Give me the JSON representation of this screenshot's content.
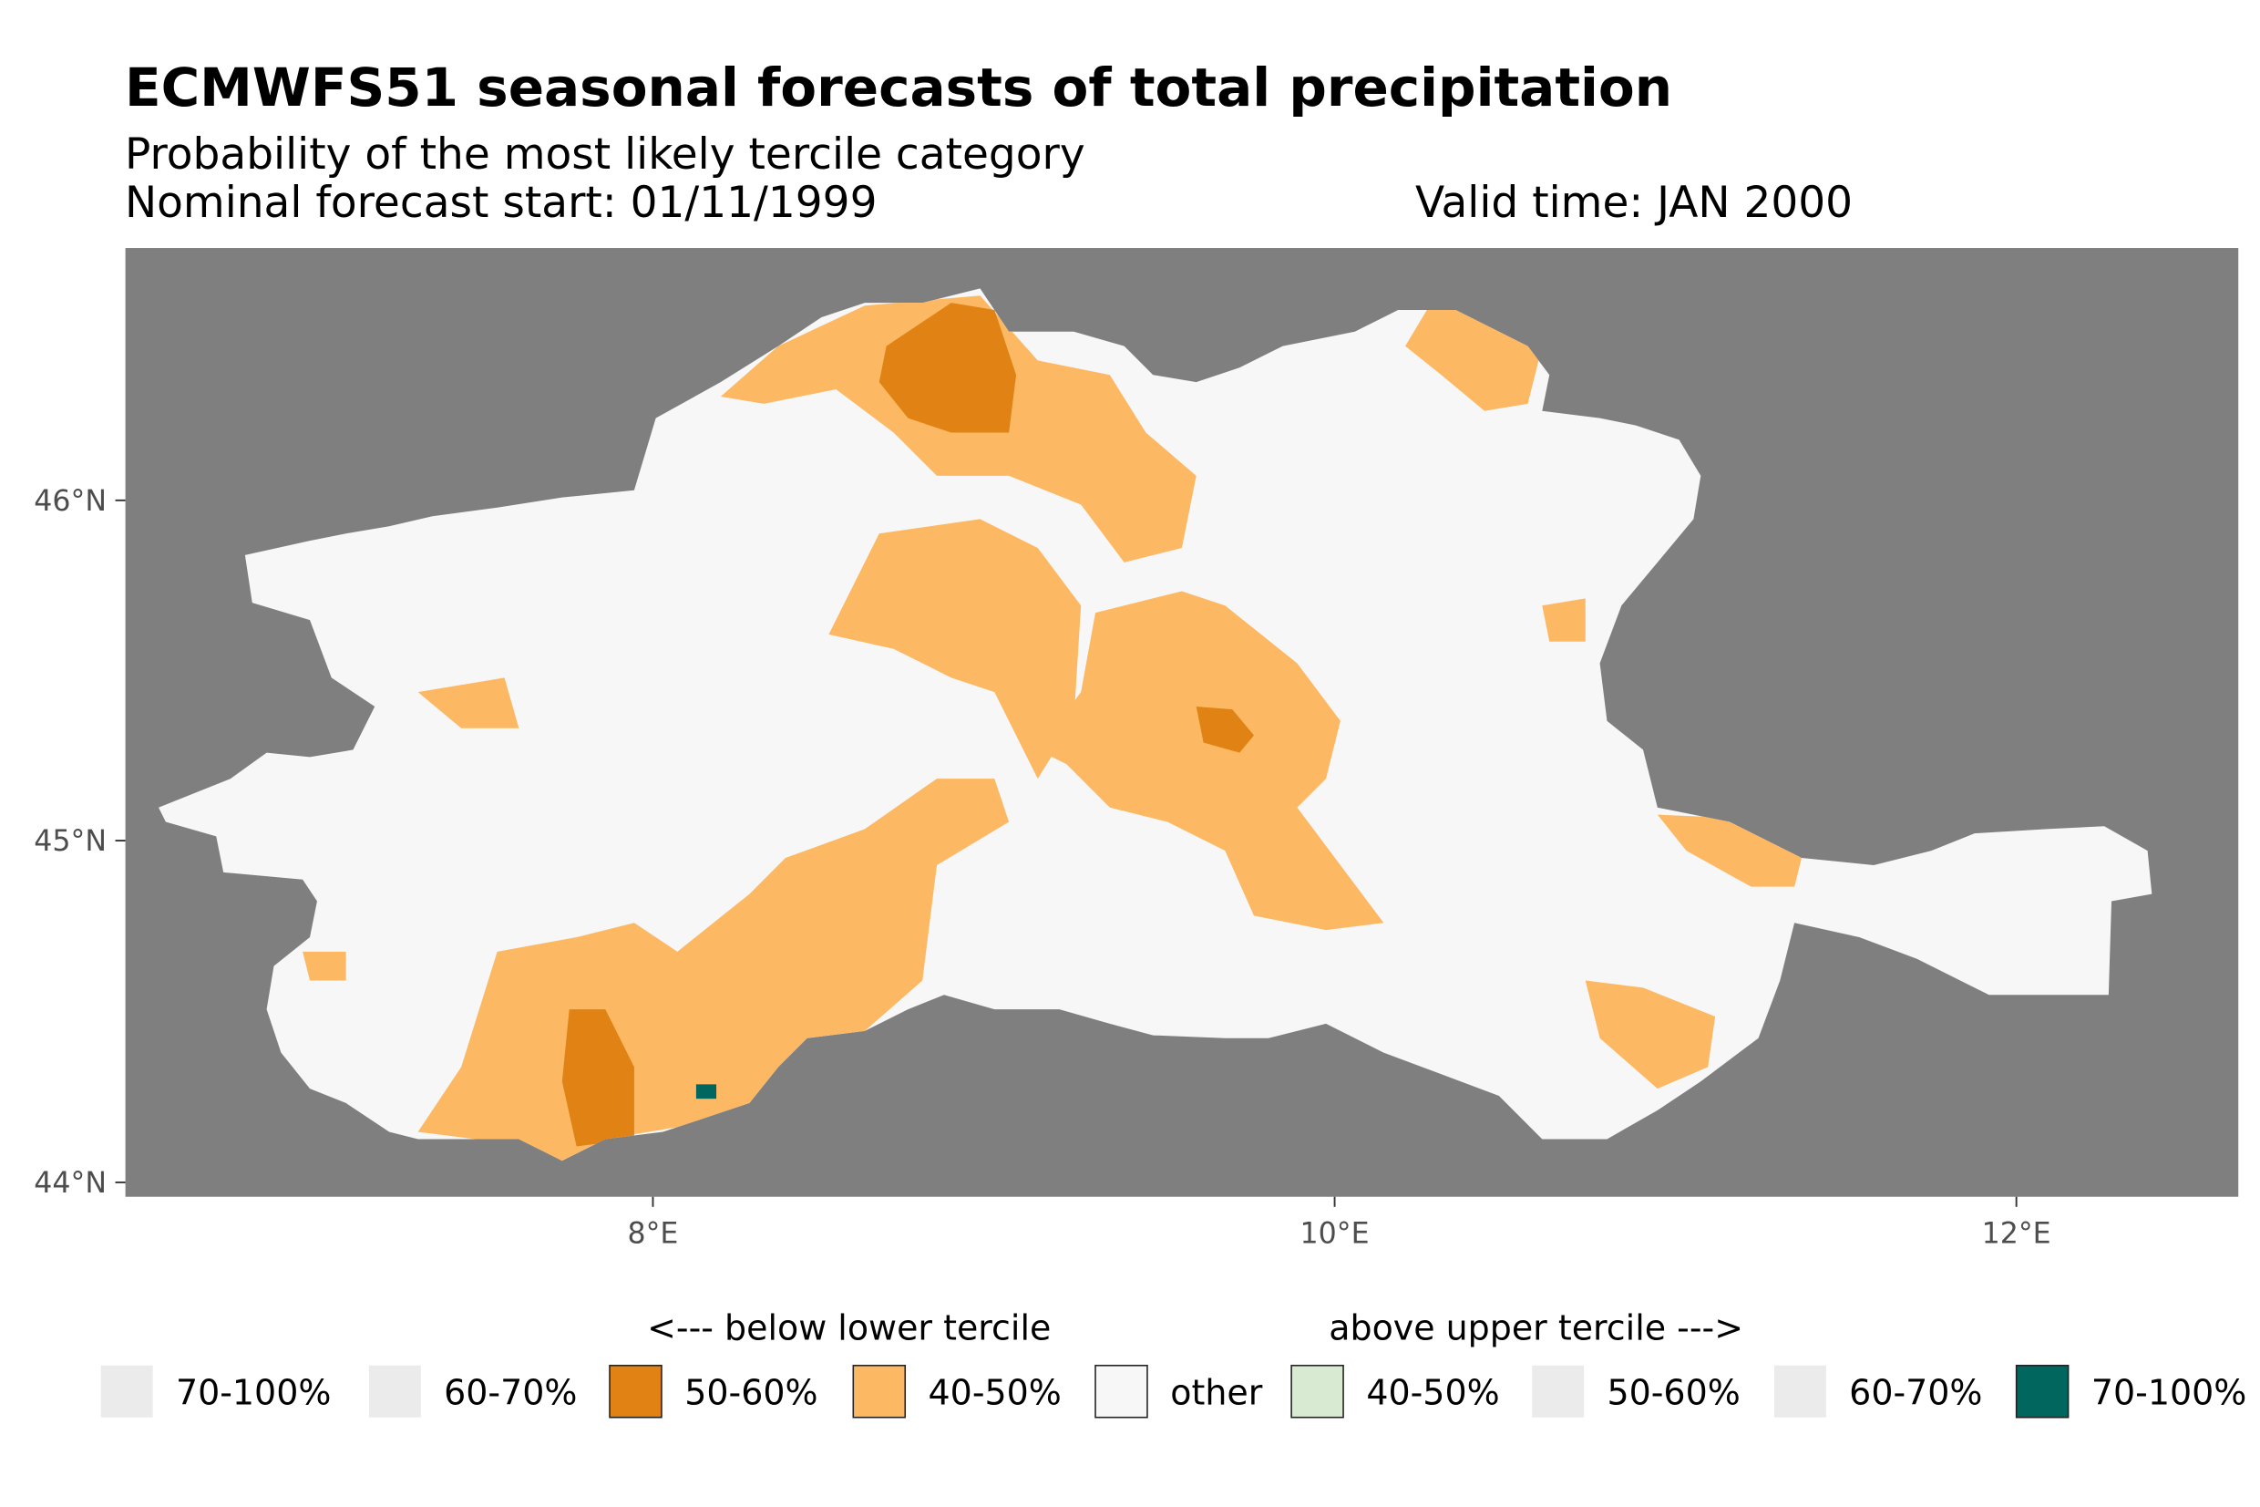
{
  "header": {
    "title": "ECMWFS51 seasonal forecasts of total precipitation",
    "subtitle": "Probability of the most likely tercile category",
    "forecast_start": "Nominal forecast start: 01/11/1999",
    "valid_time": "Valid time: JAN 2000"
  },
  "colors": {
    "panel_bg": "#7f7f7f",
    "other": "#f7f7f7",
    "below_50_60": "#e08214",
    "below_40_50": "#fdb863",
    "above_40_50": "#d9ead3",
    "above_70_100": "#01665e",
    "unused": "#ebebeb"
  },
  "chart_data": {
    "type": "heatmap",
    "title": "ECMWFS51 seasonal forecasts of total precipitation",
    "subtitle": "Probability of the most likely tercile category",
    "xlabel": "",
    "ylabel": "",
    "xlim": [
      6.45,
      12.65
    ],
    "ylim": [
      43.95,
      46.73
    ],
    "x_ticks": [
      "8°E",
      "10°E",
      "12°E"
    ],
    "x_tick_values": [
      8,
      10,
      12
    ],
    "y_ticks": [
      "44°N",
      "45°N",
      "46°N"
    ],
    "y_tick_values": [
      44,
      45,
      46
    ],
    "dominant_category": "other",
    "regions": [
      {
        "category": "below 40-50%",
        "area": "northern Alps near 8.6-9.3°E, 46.1-46.5°N"
      },
      {
        "category": "below 50-60%",
        "area": "core near 8.8°E, 46.4°N"
      },
      {
        "category": "below 40-50%",
        "area": "southwest Piedmont/Liguria 7.4-8.8°E, 44.1-45.0°N"
      },
      {
        "category": "below 50-60%",
        "area": "near 7.8°E, 44.2-44.5°N"
      },
      {
        "category": "below 40-50%",
        "area": "central Lombardy 9.3-10.1°E, 44.8-45.7°N"
      },
      {
        "category": "below 50-60%",
        "area": "near 9.7°E, 45.3°N"
      },
      {
        "category": "below 40-50%",
        "area": "east near 11.1-11.4°E, 44.9-45.1°N"
      },
      {
        "category": "above 70-100%",
        "area": "small patch near 8.15°E, 44.27°N"
      }
    ],
    "legend": {
      "placement": "bottom",
      "group_titles": [
        "<--- below lower tercile",
        "above upper tercile --->"
      ],
      "entries": [
        {
          "label": "70-100%",
          "color": "#ebebeb"
        },
        {
          "label": "60-70%",
          "color": "#ebebeb"
        },
        {
          "label": "50-60%",
          "color": "#e08214"
        },
        {
          "label": "40-50%",
          "color": "#fdb863"
        },
        {
          "label": "other",
          "color": "#f7f7f7"
        },
        {
          "label": "40-50%",
          "color": "#d9ead3"
        },
        {
          "label": "50-60%",
          "color": "#ebebeb"
        },
        {
          "label": "60-70%",
          "color": "#ebebeb"
        },
        {
          "label": "70-100%",
          "color": "#01665e"
        }
      ]
    }
  }
}
